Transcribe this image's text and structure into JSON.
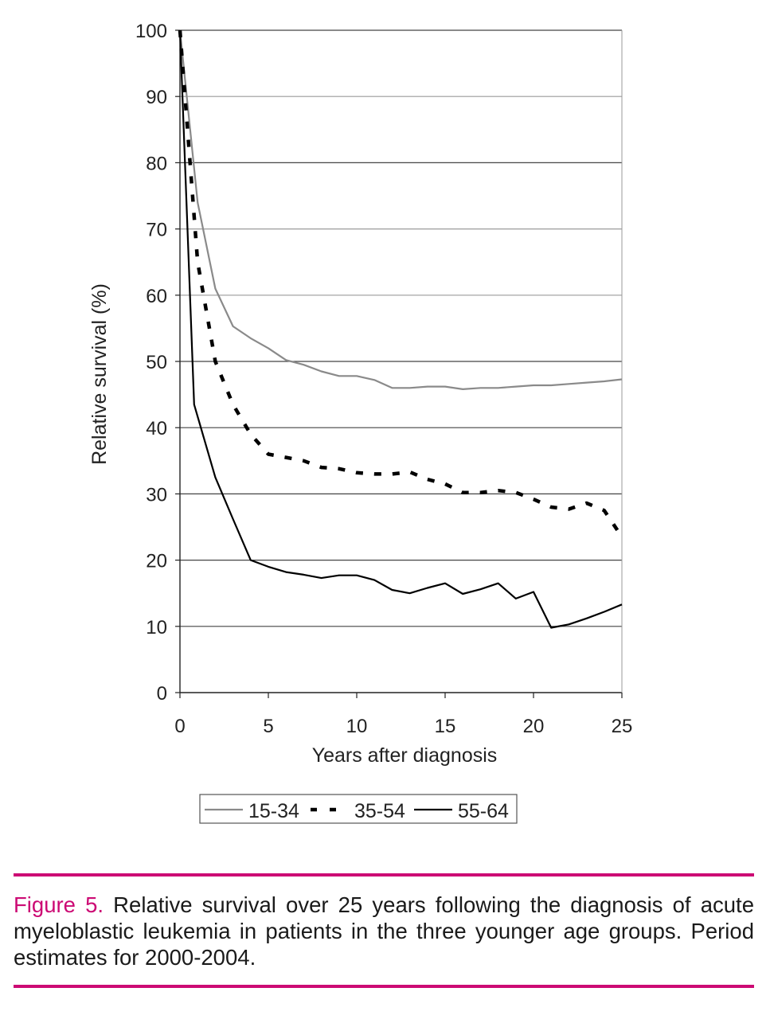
{
  "colors": {
    "accent": "#cc0a74",
    "gridline": "#444444",
    "series_light": "#8a8a8a",
    "series_dark": "#000000"
  },
  "chart_data": {
    "type": "line",
    "title": "",
    "xlabel": "Years after diagnosis",
    "ylabel": "Relative survival (%)",
    "xlim": [
      0,
      25
    ],
    "ylim": [
      0,
      100
    ],
    "x_ticks": [
      0,
      5,
      10,
      15,
      20,
      25
    ],
    "y_ticks": [
      0,
      10,
      20,
      30,
      40,
      50,
      60,
      70,
      80,
      90,
      100
    ],
    "grid": true,
    "legend_position": "bottom",
    "series": [
      {
        "name": "15-34",
        "style": "solid-gray",
        "x": [
          0,
          1,
          2,
          3,
          4,
          5,
          6,
          7,
          8,
          9,
          10,
          11,
          12,
          13,
          14,
          15,
          16,
          17,
          18,
          19,
          20,
          21,
          22,
          23,
          24,
          25
        ],
        "y": [
          100,
          74,
          61,
          55.3,
          53.5,
          52,
          50.2,
          49.5,
          48.5,
          47.8,
          47.8,
          47.2,
          46,
          46,
          46.2,
          46.2,
          45.8,
          46,
          46,
          46.2,
          46.4,
          46.4,
          46.6,
          46.8,
          47,
          47.3
        ]
      },
      {
        "name": "35-54",
        "style": "dashed-black",
        "x": [
          0,
          1,
          2,
          3,
          4,
          5,
          6,
          7,
          8,
          9,
          10,
          11,
          12,
          13,
          14,
          15,
          16,
          17,
          18,
          19,
          20,
          21,
          22,
          23,
          24,
          25
        ],
        "y": [
          100,
          65,
          50,
          43.5,
          39,
          36,
          35.5,
          35,
          34,
          33.8,
          33.2,
          33,
          33,
          33.3,
          32.2,
          31.5,
          30.2,
          30.2,
          30.5,
          30.2,
          29.2,
          28,
          27.7,
          28.6,
          27.5,
          23.5
        ]
      },
      {
        "name": "55-64",
        "style": "solid-black",
        "x": [
          0,
          0.8,
          2,
          3,
          4,
          5,
          6,
          7,
          8,
          9,
          10,
          11,
          12,
          13,
          14,
          15,
          16,
          17,
          18,
          19,
          20,
          21,
          22,
          23,
          24,
          25
        ],
        "y": [
          100,
          43.5,
          32.5,
          26.2,
          20,
          19,
          18.2,
          17.8,
          17.3,
          17.7,
          17.7,
          17,
          15.5,
          15,
          15.8,
          16.5,
          14.9,
          15.6,
          16.5,
          14.2,
          15.2,
          9.8,
          10.3,
          11.2,
          12.2,
          13.3
        ]
      }
    ]
  },
  "caption": {
    "label": "Figure 5.",
    "text": " Relative survival over 25 years following the diagnosis of acute myeloblastic leukemia in patients in the three younger age groups. Period estimates for 2000-2004."
  }
}
